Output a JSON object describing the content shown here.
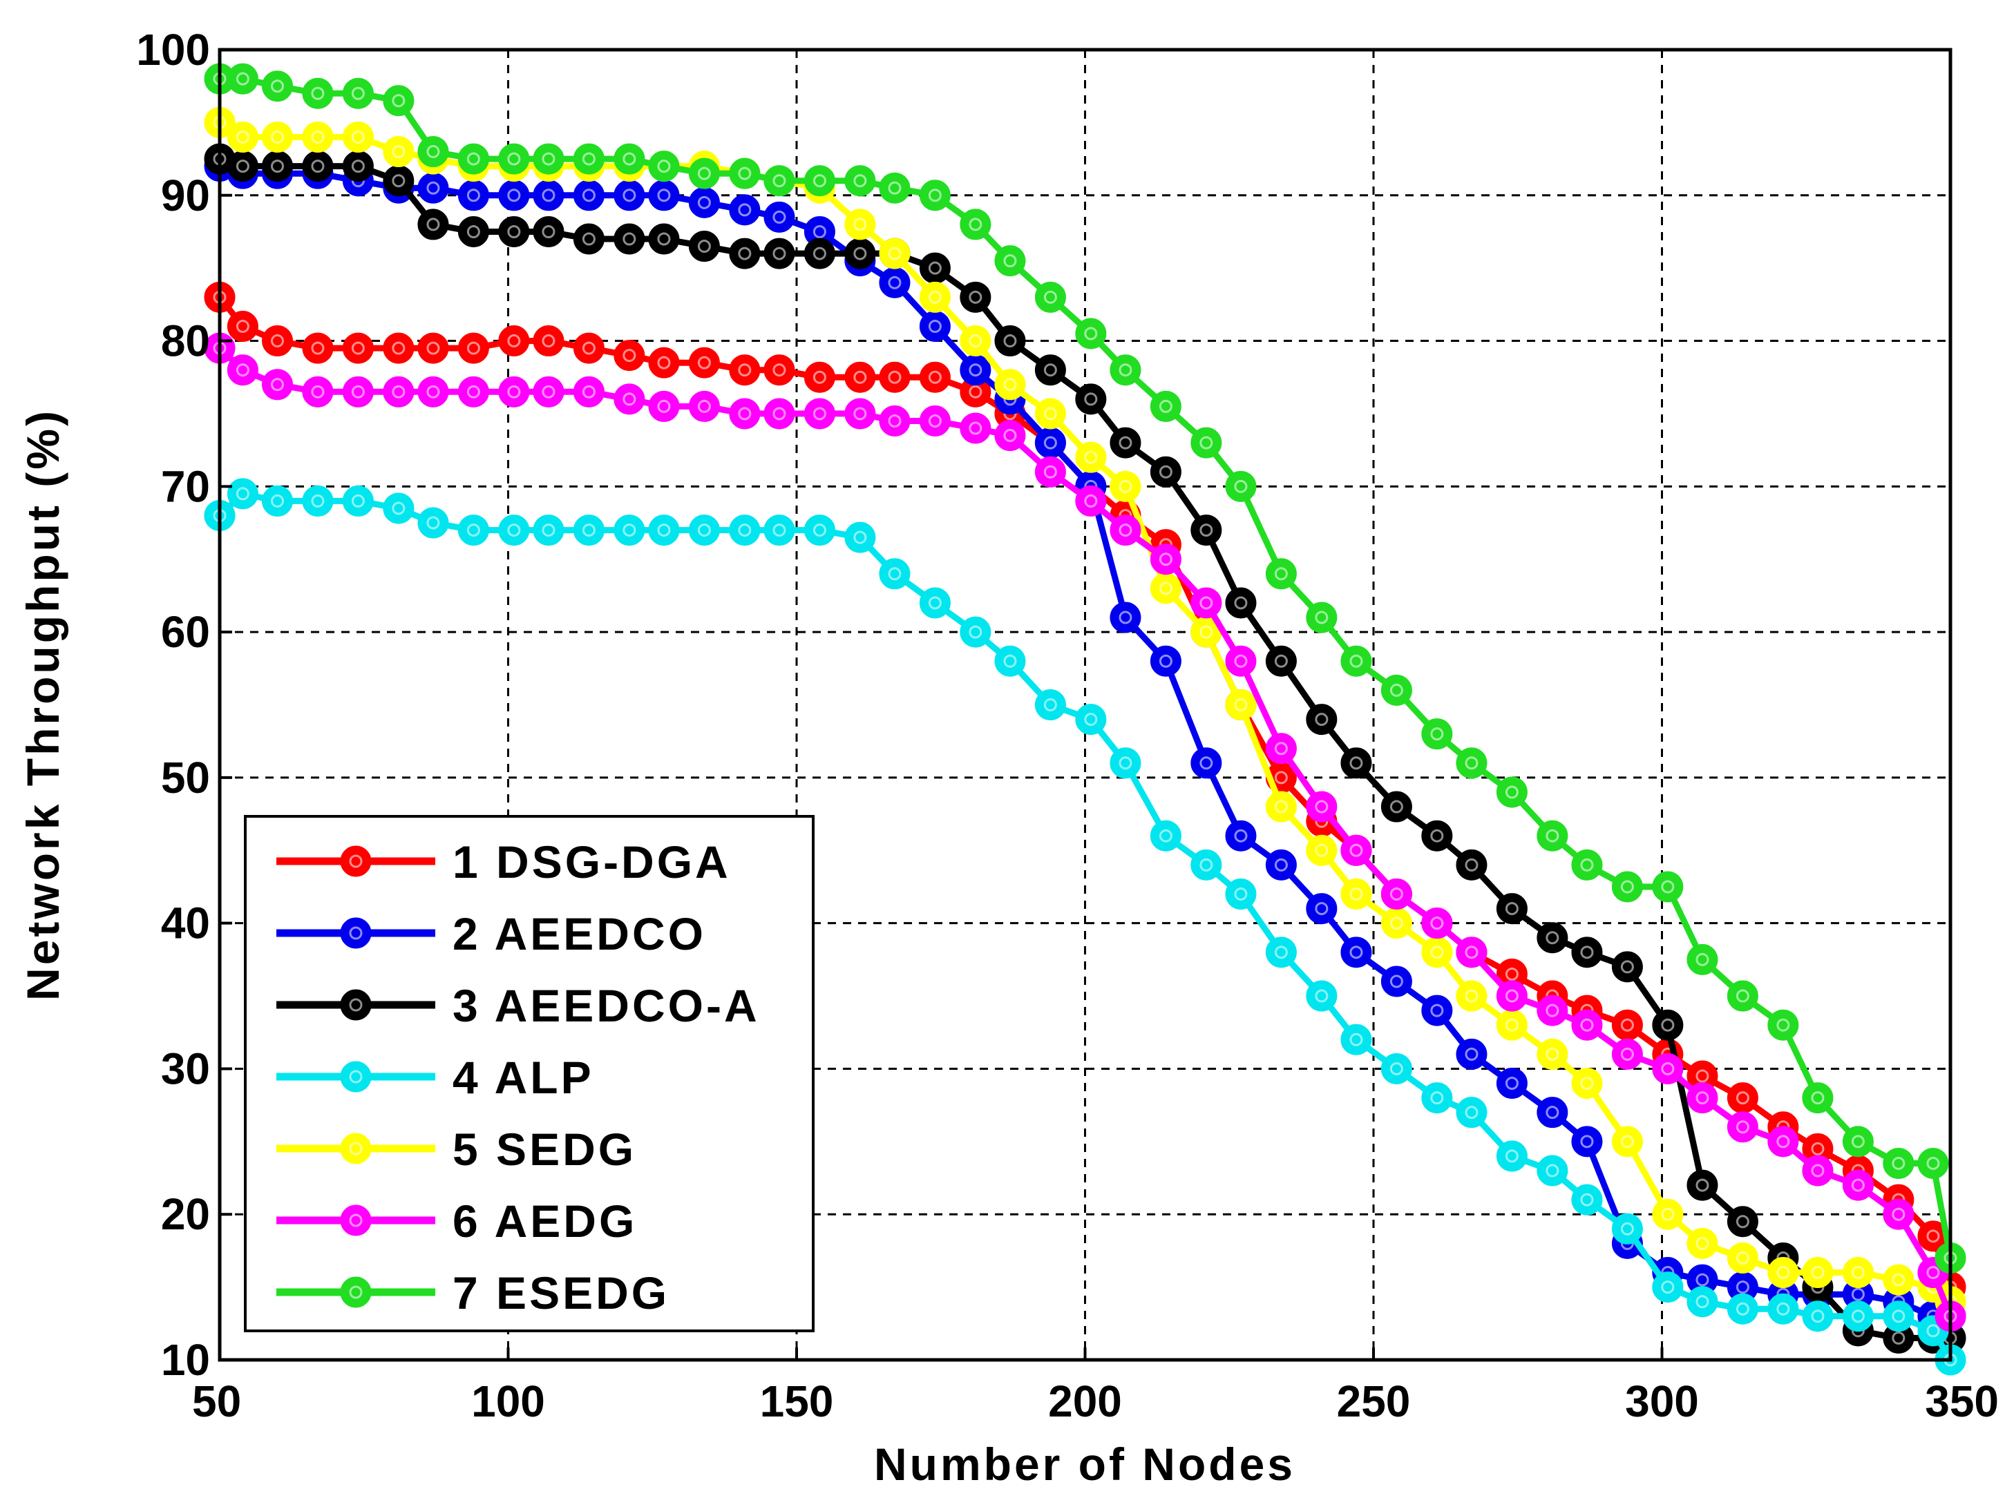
{
  "chart_data": {
    "type": "line",
    "title": "",
    "xlabel": "Number of Nodes",
    "ylabel": "Network Throughput (%)",
    "xlim": [
      50,
      350
    ],
    "ylim": [
      10,
      100
    ],
    "x_ticks": [
      50,
      100,
      150,
      200,
      250,
      300,
      350
    ],
    "y_ticks": [
      10,
      20,
      30,
      40,
      50,
      60,
      70,
      80,
      90,
      100
    ],
    "x_tick_labels": [
      "50",
      "100",
      "150",
      "200",
      "250",
      "300",
      "350"
    ],
    "y_tick_labels": [
      "10",
      "20",
      "30",
      "40",
      "50",
      "60",
      "70",
      "80",
      "90",
      "100"
    ],
    "grid": true,
    "legend_position": "bottom-left",
    "series": [
      {
        "name": "1 DSG-DGA",
        "color": "#ff0000",
        "x": [
          50,
          54,
          60,
          67,
          74,
          81,
          87,
          94,
          101,
          107,
          114,
          121,
          127,
          134,
          141,
          147,
          154,
          161,
          167,
          174,
          181,
          187,
          194,
          201,
          207,
          214,
          221,
          227,
          234,
          241,
          247,
          254,
          261,
          267,
          274,
          281,
          287,
          294,
          301,
          307,
          314,
          321,
          327,
          334,
          341,
          347,
          350
        ],
        "y": [
          83,
          81,
          80,
          79.5,
          79.5,
          79.5,
          79.5,
          79.5,
          80,
          80,
          79.5,
          79,
          78.5,
          78.5,
          78,
          78,
          77.5,
          77.5,
          77.5,
          77.5,
          76.5,
          75,
          73,
          70,
          68,
          66,
          60,
          55,
          50,
          47,
          45,
          42,
          40,
          38,
          36.5,
          35,
          34,
          33,
          31,
          29.5,
          28,
          26,
          24.5,
          23,
          21,
          18.5,
          15
        ]
      },
      {
        "name": "2 AEEDCO",
        "color": "#0000ee",
        "x": [
          50,
          54,
          60,
          67,
          74,
          81,
          87,
          94,
          101,
          107,
          114,
          121,
          127,
          134,
          141,
          147,
          154,
          161,
          167,
          174,
          181,
          187,
          194,
          201,
          207,
          214,
          221,
          227,
          234,
          241,
          247,
          254,
          261,
          267,
          274,
          281,
          287,
          294,
          301,
          307,
          314,
          321,
          327,
          334,
          341,
          347,
          350
        ],
        "y": [
          92,
          91.5,
          91.5,
          91.5,
          91,
          90.5,
          90.5,
          90,
          90,
          90,
          90,
          90,
          90,
          89.5,
          89,
          88.5,
          87.5,
          85.5,
          84,
          81,
          78,
          76,
          73,
          70,
          61,
          58,
          51,
          46,
          44,
          41,
          38,
          36,
          34,
          31,
          29,
          27,
          25,
          18,
          16,
          15.5,
          15,
          14.5,
          14.5,
          14.5,
          14,
          13,
          13
        ]
      },
      {
        "name": "3 AEEDCO-A",
        "color": "#000000",
        "x": [
          50,
          54,
          60,
          67,
          74,
          81,
          87,
          94,
          101,
          107,
          114,
          121,
          127,
          134,
          141,
          147,
          154,
          161,
          167,
          174,
          181,
          187,
          194,
          201,
          207,
          214,
          221,
          227,
          234,
          241,
          247,
          254,
          261,
          267,
          274,
          281,
          287,
          294,
          301,
          307,
          314,
          321,
          327,
          334,
          341,
          347,
          350
        ],
        "y": [
          92.5,
          92,
          92,
          92,
          92,
          91,
          88,
          87.5,
          87.5,
          87.5,
          87,
          87,
          87,
          86.5,
          86,
          86,
          86,
          86,
          86,
          85,
          83,
          80,
          78,
          76,
          73,
          71,
          67,
          62,
          58,
          54,
          51,
          48,
          46,
          44,
          41,
          39,
          38,
          37,
          33,
          22,
          19.5,
          17,
          15,
          12,
          11.5,
          11.5,
          11.5
        ]
      },
      {
        "name": "4 ALP",
        "color": "#00e5ee",
        "x": [
          50,
          54,
          60,
          67,
          74,
          81,
          87,
          94,
          101,
          107,
          114,
          121,
          127,
          134,
          141,
          147,
          154,
          161,
          167,
          174,
          181,
          187,
          194,
          201,
          207,
          214,
          221,
          227,
          234,
          241,
          247,
          254,
          261,
          267,
          274,
          281,
          287,
          294,
          301,
          307,
          314,
          321,
          327,
          334,
          341,
          347,
          350
        ],
        "y": [
          68,
          69.5,
          69,
          69,
          69,
          68.5,
          67.5,
          67,
          67,
          67,
          67,
          67,
          67,
          67,
          67,
          67,
          67,
          66.5,
          64,
          62,
          60,
          58,
          55,
          54,
          51,
          46,
          44,
          42,
          38,
          35,
          32,
          30,
          28,
          27,
          24,
          23,
          21,
          19,
          15,
          14,
          13.5,
          13.5,
          13,
          13,
          13,
          12,
          10
        ]
      },
      {
        "name": "5 SEDG",
        "color": "#ffff00",
        "x": [
          50,
          54,
          60,
          67,
          74,
          81,
          87,
          94,
          101,
          107,
          114,
          121,
          127,
          134,
          141,
          147,
          154,
          161,
          167,
          174,
          181,
          187,
          194,
          201,
          207,
          214,
          221,
          227,
          234,
          241,
          247,
          254,
          261,
          267,
          274,
          281,
          287,
          294,
          301,
          307,
          314,
          321,
          327,
          334,
          341,
          347,
          350
        ],
        "y": [
          95,
          94,
          94,
          94,
          94,
          93,
          92.5,
          92,
          92,
          92,
          92,
          92,
          92,
          92,
          91.5,
          91,
          90.5,
          88,
          86,
          83,
          80,
          77,
          75,
          72,
          70,
          63,
          60,
          55,
          48,
          45,
          42,
          40,
          38,
          35,
          33,
          31,
          29,
          25,
          20,
          18,
          17,
          16,
          16,
          16,
          15.5,
          15,
          14
        ]
      },
      {
        "name": "6 AEDG",
        "color": "#ff00ff",
        "x": [
          50,
          54,
          60,
          67,
          74,
          81,
          87,
          94,
          101,
          107,
          114,
          121,
          127,
          134,
          141,
          147,
          154,
          161,
          167,
          174,
          181,
          187,
          194,
          201,
          207,
          214,
          221,
          227,
          234,
          241,
          247,
          254,
          261,
          267,
          274,
          281,
          287,
          294,
          301,
          307,
          314,
          321,
          327,
          334,
          341,
          347,
          350
        ],
        "y": [
          79.5,
          78,
          77,
          76.5,
          76.5,
          76.5,
          76.5,
          76.5,
          76.5,
          76.5,
          76.5,
          76,
          75.5,
          75.5,
          75,
          75,
          75,
          75,
          74.5,
          74.5,
          74,
          73.5,
          71,
          69,
          67,
          65,
          62,
          58,
          52,
          48,
          45,
          42,
          40,
          38,
          35,
          34,
          33,
          31,
          30,
          28,
          26,
          25,
          23,
          22,
          20,
          16,
          13
        ]
      },
      {
        "name": "7 ESEDG",
        "color": "#22dd22",
        "x": [
          50,
          54,
          60,
          67,
          74,
          81,
          87,
          94,
          101,
          107,
          114,
          121,
          127,
          134,
          141,
          147,
          154,
          161,
          167,
          174,
          181,
          187,
          194,
          201,
          207,
          214,
          221,
          227,
          234,
          241,
          247,
          254,
          261,
          267,
          274,
          281,
          287,
          294,
          301,
          307,
          314,
          321,
          327,
          334,
          341,
          347,
          350
        ],
        "y": [
          98,
          98,
          97.5,
          97,
          97,
          96.5,
          93,
          92.5,
          92.5,
          92.5,
          92.5,
          92.5,
          92,
          91.5,
          91.5,
          91,
          91,
          91,
          90.5,
          90,
          88,
          85.5,
          83,
          80.5,
          78,
          75.5,
          73,
          70,
          64,
          61,
          58,
          56,
          53,
          51,
          49,
          46,
          44,
          42.5,
          42.5,
          37.5,
          35,
          33,
          28,
          25,
          23.5,
          23.5,
          17
        ]
      }
    ]
  }
}
